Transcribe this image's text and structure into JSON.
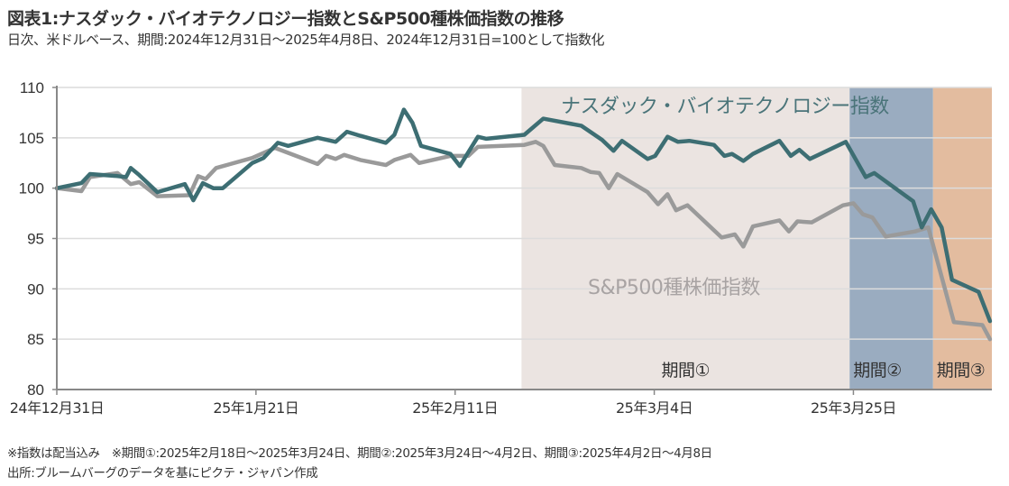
{
  "header": {
    "title": "図表1:ナスダック・バイオテクノロジー指数とS&P500種株価指数の推移",
    "subtitle": "日次、米ドルベース、期間:2024年12月31日～2025年4月8日、2024年12月31日=100として指数化"
  },
  "footer": {
    "note": "※指数は配当込み　※期間①:2025年2月18日～2025年3月24日、期間②:2025年3月24日～4月2日、期間③:2025年4月2日～4月8日",
    "source": "出所:ブルームバーグのデータを基にピクテ・ジャパン作成"
  },
  "chart_data": {
    "type": "line",
    "title": "図表1:ナスダック・バイオテクノロジー指数とS&P500種株価指数の推移",
    "xlabel": "",
    "ylabel": "",
    "x_unit": "days since 2024-12-31",
    "xlim": [
      0,
      98.6
    ],
    "ylim": [
      80,
      110
    ],
    "yticks": [
      80,
      85,
      90,
      95,
      100,
      105,
      110
    ],
    "xticks": [
      {
        "day": 0,
        "label": "24年12月31日"
      },
      {
        "day": 21,
        "label": "25年1月21日"
      },
      {
        "day": 42,
        "label": "25年2月11日"
      },
      {
        "day": 63,
        "label": "25年3月4日"
      },
      {
        "day": 84,
        "label": "25年3月25日"
      }
    ],
    "grid": true,
    "periods": [
      {
        "label": "期間①",
        "start_day": 49,
        "end_day": 83.6,
        "color": "#ebe4e1"
      },
      {
        "label": "期間②",
        "start_day": 83.6,
        "end_day": 92.4,
        "color": "#9aacc0"
      },
      {
        "label": "期間③",
        "start_day": 92.4,
        "end_day": 98.6,
        "color": "#e3bc9f"
      }
    ],
    "series": [
      {
        "name": "ナスダック・バイオテクノロジー指数",
        "color": "#3d6e73",
        "points": [
          [
            0,
            100
          ],
          [
            2.6,
            100.5
          ],
          [
            3.5,
            101.4
          ],
          [
            6.4,
            101.2
          ],
          [
            7.3,
            101.1
          ],
          [
            7.8,
            102.0
          ],
          [
            8.7,
            101.3
          ],
          [
            10.6,
            99.6
          ],
          [
            13.5,
            100.4
          ],
          [
            14.4,
            98.8
          ],
          [
            15.4,
            100.5
          ],
          [
            16.5,
            100.0
          ],
          [
            17.5,
            100.0
          ],
          [
            20.6,
            102.5
          ],
          [
            21.8,
            103.0
          ],
          [
            23.3,
            104.5
          ],
          [
            24.4,
            104.2
          ],
          [
            27.5,
            105.0
          ],
          [
            29.4,
            104.6
          ],
          [
            30.6,
            105.6
          ],
          [
            32.0,
            105.2
          ],
          [
            34.7,
            104.5
          ],
          [
            35.6,
            105.3
          ],
          [
            36.6,
            107.8
          ],
          [
            37.5,
            106.5
          ],
          [
            38.4,
            104.2
          ],
          [
            41.5,
            103.4
          ],
          [
            42.5,
            102.2
          ],
          [
            44.4,
            105.1
          ],
          [
            45.3,
            104.9
          ],
          [
            49.3,
            105.3
          ],
          [
            51.3,
            106.9
          ],
          [
            55.3,
            106.2
          ],
          [
            57.5,
            104.8
          ],
          [
            58.7,
            103.7
          ],
          [
            59.6,
            104.7
          ],
          [
            62.3,
            102.9
          ],
          [
            63.1,
            103.2
          ],
          [
            64.4,
            105.1
          ],
          [
            65.5,
            104.6
          ],
          [
            66.7,
            104.7
          ],
          [
            69.3,
            104.3
          ],
          [
            70.4,
            103.2
          ],
          [
            71.2,
            103.4
          ],
          [
            72.4,
            102.7
          ],
          [
            73.4,
            103.4
          ],
          [
            76.2,
            104.7
          ],
          [
            77.4,
            103.2
          ],
          [
            78.3,
            103.8
          ],
          [
            79.4,
            102.9
          ],
          [
            83.2,
            104.6
          ],
          [
            85.3,
            101.1
          ],
          [
            86.2,
            101.5
          ],
          [
            90.3,
            98.7
          ],
          [
            91.2,
            96.1
          ],
          [
            92.2,
            97.9
          ],
          [
            93.3,
            96.1
          ],
          [
            94.4,
            90.9
          ],
          [
            97.2,
            89.7
          ],
          [
            98.4,
            86.8
          ]
        ]
      },
      {
        "name": "S&P500種株価指数",
        "color": "#9a9a9a",
        "points": [
          [
            0,
            100
          ],
          [
            2.6,
            99.7
          ],
          [
            3.5,
            101.1
          ],
          [
            6.4,
            101.5
          ],
          [
            7.8,
            100.4
          ],
          [
            8.7,
            100.6
          ],
          [
            10.6,
            99.2
          ],
          [
            14.0,
            99.3
          ],
          [
            14.9,
            101.2
          ],
          [
            15.7,
            100.9
          ],
          [
            16.8,
            102.0
          ],
          [
            20.6,
            103.0
          ],
          [
            23.0,
            104.0
          ],
          [
            27.5,
            102.4
          ],
          [
            28.4,
            103.2
          ],
          [
            29.4,
            102.9
          ],
          [
            30.3,
            103.3
          ],
          [
            32.0,
            102.8
          ],
          [
            34.7,
            102.3
          ],
          [
            35.6,
            102.8
          ],
          [
            37.3,
            103.3
          ],
          [
            38.2,
            102.5
          ],
          [
            41.5,
            103.2
          ],
          [
            43.4,
            103.2
          ],
          [
            44.4,
            104.1
          ],
          [
            49.3,
            104.3
          ],
          [
            50.5,
            104.6
          ],
          [
            51.3,
            104.2
          ],
          [
            52.5,
            102.3
          ],
          [
            55.3,
            102.0
          ],
          [
            56.3,
            101.6
          ],
          [
            57.2,
            101.5
          ],
          [
            58.2,
            100.0
          ],
          [
            59.1,
            101.4
          ],
          [
            62.3,
            99.6
          ],
          [
            63.4,
            98.4
          ],
          [
            64.4,
            99.4
          ],
          [
            65.3,
            97.8
          ],
          [
            66.5,
            98.3
          ],
          [
            70.1,
            95.1
          ],
          [
            71.5,
            95.4
          ],
          [
            72.4,
            94.2
          ],
          [
            73.4,
            96.2
          ],
          [
            76.2,
            96.8
          ],
          [
            77.2,
            95.7
          ],
          [
            78.1,
            96.7
          ],
          [
            79.6,
            96.6
          ],
          [
            82.9,
            98.3
          ],
          [
            84.0,
            98.5
          ],
          [
            85.0,
            97.4
          ],
          [
            86.0,
            97.1
          ],
          [
            87.4,
            95.2
          ],
          [
            90.5,
            95.7
          ],
          [
            91.9,
            96.1
          ],
          [
            94.6,
            86.7
          ],
          [
            97.6,
            86.4
          ],
          [
            98.4,
            85.0
          ]
        ]
      }
    ],
    "annotations": {
      "nasdaq_label": "ナスダック・バイオテクノロジー指数",
      "sp500_label": "S&P500種株価指数"
    }
  }
}
